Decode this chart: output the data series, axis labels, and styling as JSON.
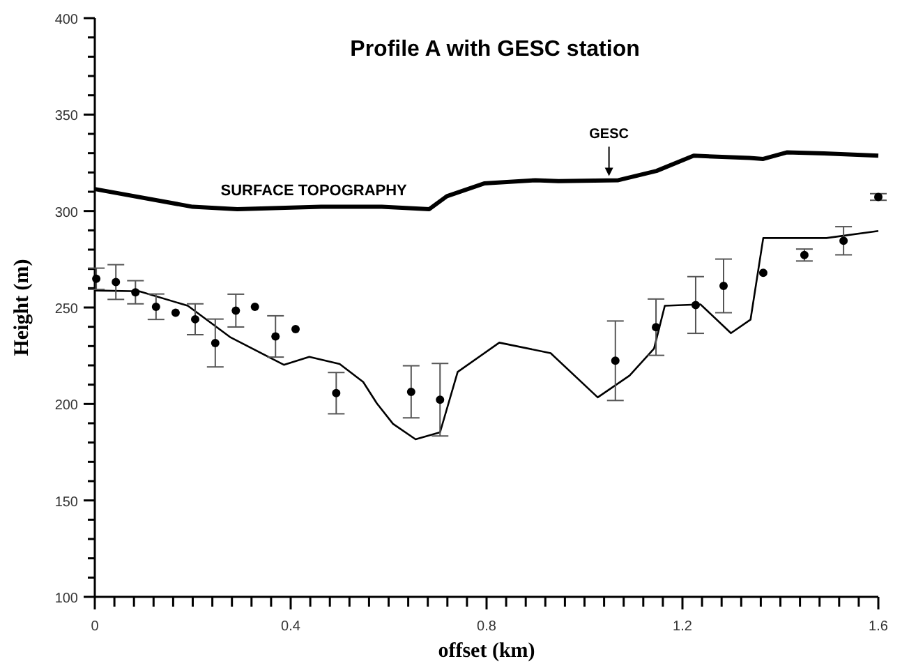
{
  "chart_data": {
    "type": "line",
    "title": "Profile A with GESC station",
    "xlabel": "offset (km)",
    "ylabel": "Height (m)",
    "xlim": [
      0,
      1.6
    ],
    "ylim": [
      100,
      400
    ],
    "xticks": [
      0,
      {
        "value": 0.04,
        "label": null
      },
      {
        "value": 0.08,
        "label": null
      },
      {
        "value": 0.12,
        "label": null
      },
      {
        "value": 0.16,
        "label": null
      },
      {
        "value": 0.2,
        "label": null
      },
      {
        "value": 0.24,
        "label": null
      },
      {
        "value": 0.28,
        "label": null
      },
      {
        "value": 0.32,
        "label": null
      },
      {
        "value": 0.36,
        "label": null
      },
      0.4,
      {
        "value": 0.44,
        "label": null
      },
      {
        "value": 0.48,
        "label": null
      },
      {
        "value": 0.52,
        "label": null
      },
      {
        "value": 0.56,
        "label": null
      },
      {
        "value": 0.6,
        "label": null
      },
      {
        "value": 0.64,
        "label": null
      },
      {
        "value": 0.68,
        "label": null
      },
      {
        "value": 0.72,
        "label": null
      },
      {
        "value": 0.76,
        "label": null
      },
      0.8,
      {
        "value": 0.84,
        "label": null
      },
      {
        "value": 0.88,
        "label": null
      },
      {
        "value": 0.92,
        "label": null
      },
      {
        "value": 0.96,
        "label": null
      },
      {
        "value": 1.0,
        "label": null
      },
      {
        "value": 1.04,
        "label": null
      },
      {
        "value": 1.08,
        "label": null
      },
      {
        "value": 1.12,
        "label": null
      },
      {
        "value": 1.16,
        "label": null
      },
      1.2,
      {
        "value": 1.24,
        "label": null
      },
      {
        "value": 1.28,
        "label": null
      },
      {
        "value": 1.32,
        "label": null
      },
      {
        "value": 1.36,
        "label": null
      },
      {
        "value": 1.4,
        "label": null
      },
      {
        "value": 1.44,
        "label": null
      },
      {
        "value": 1.48,
        "label": null
      },
      {
        "value": 1.52,
        "label": null
      },
      {
        "value": 1.56,
        "label": null
      },
      1.6
    ],
    "yticks": [
      100,
      {
        "value": 110,
        "label": null
      },
      {
        "value": 120,
        "label": null
      },
      {
        "value": 130,
        "label": null
      },
      {
        "value": 140,
        "label": null
      },
      150,
      {
        "value": 160,
        "label": null
      },
      {
        "value": 170,
        "label": null
      },
      {
        "value": 180,
        "label": null
      },
      {
        "value": 190,
        "label": null
      },
      200,
      {
        "value": 210,
        "label": null
      },
      {
        "value": 220,
        "label": null
      },
      {
        "value": 230,
        "label": null
      },
      {
        "value": 240,
        "label": null
      },
      250,
      {
        "value": 260,
        "label": null
      },
      {
        "value": 270,
        "label": null
      },
      {
        "value": 280,
        "label": null
      },
      {
        "value": 290,
        "label": null
      },
      300,
      {
        "value": 310,
        "label": null
      },
      {
        "value": 320,
        "label": null
      },
      {
        "value": 330,
        "label": null
      },
      {
        "value": 340,
        "label": null
      },
      350,
      {
        "value": 360,
        "label": null
      },
      {
        "value": 370,
        "label": null
      },
      {
        "value": 380,
        "label": null
      },
      {
        "value": 390,
        "label": null
      },
      400
    ],
    "grid": false,
    "annotations": [
      {
        "text": "GESC",
        "x": 1.05,
        "y": 316
      }
    ],
    "series": [
      {
        "name": "SURFACE TOPOGRAPHY",
        "color": "#000000",
        "x": [
          0,
          0.2,
          0.291,
          0.462,
          0.586,
          0.683,
          0.719,
          0.795,
          0.9,
          0.947,
          1.069,
          1.147,
          1.223,
          1.337,
          1.365,
          1.413,
          1.489,
          1.6
        ],
        "values": [
          311.4,
          302.2,
          301,
          302.2,
          302.2,
          301,
          307.7,
          314.3,
          316,
          315.5,
          316,
          320.8,
          328.7,
          327.5,
          327,
          330.4,
          329.9,
          328.7
        ]
      },
      {
        "color": "#000000",
        "x": [
          0,
          0.091,
          0.19,
          0.276,
          0.386,
          0.438,
          0.5,
          0.548,
          0.576,
          0.609,
          0.655,
          0.705,
          0.741,
          0.826,
          0.931,
          1.027,
          1.092,
          1.142,
          1.164,
          1.237,
          1.299,
          1.339,
          1.365,
          1.494,
          1.6
        ],
        "values": [
          258.8,
          258.4,
          250.9,
          234.7,
          220.3,
          224.4,
          220.7,
          211.4,
          200.3,
          189.7,
          181.7,
          185.3,
          216.6,
          231.8,
          226.3,
          203.4,
          214.7,
          228.7,
          250.9,
          251.6,
          236.7,
          243.7,
          286,
          286,
          289.7
        ]
      },
      {
        "type": "scatter",
        "color": "#000000",
        "marker": "circle",
        "x": [
          0.003,
          0.043,
          0.083,
          0.125,
          0.165,
          0.205,
          0.246,
          0.288,
          0.327,
          0.369,
          0.41,
          0.493,
          0.646,
          0.705,
          1.063,
          1.146,
          1.227,
          1.284,
          1.365,
          1.449,
          1.529,
          1.6
        ],
        "values": [
          264.9,
          263.2,
          257.9,
          250.4,
          247.3,
          243.9,
          231.6,
          248.4,
          250.4,
          235,
          238.8,
          205.6,
          206.3,
          202.2,
          222.4,
          239.8,
          251.3,
          261.2,
          268,
          277.2,
          284.6,
          307.3
        ],
        "errors": [
          5.5,
          9,
          6,
          6.6,
          null,
          8,
          12.4,
          8.5,
          null,
          10.7,
          null,
          10.7,
          13.5,
          18.8,
          20.6,
          14.6,
          14.7,
          13.9,
          null,
          3.1,
          7.3,
          1.7
        ]
      }
    ]
  }
}
